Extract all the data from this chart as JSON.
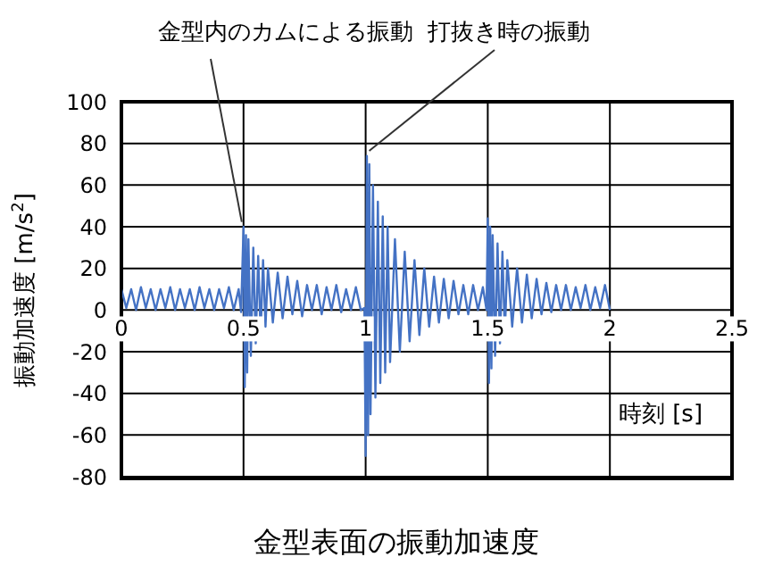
{
  "chart_data": {
    "type": "line",
    "title": "金型表面の振動加速度",
    "xlabel": "時刻 [s]",
    "ylabel": "振動加速度 [m/s$^{2}$]",
    "annotations": [
      {
        "text": "金型内のカムによる振動",
        "x": 0.5,
        "y": 40
      },
      {
        "text": "打抜き時の振動",
        "x": 1.0,
        "y": 74
      }
    ],
    "xlim": [
      0,
      2.5
    ],
    "xticks": [
      0,
      0.5,
      1,
      1.5,
      2,
      2.5
    ],
    "ylim": [
      -80,
      100
    ],
    "yticks": [
      -80,
      -60,
      -40,
      -20,
      0,
      20,
      40,
      60,
      80,
      100
    ],
    "grid": true,
    "legend": false,
    "marker": "none",
    "line_style": "solid",
    "series": [
      {
        "color": "#4472c4",
        "x": [
          0,
          0.02,
          0.04,
          0.06,
          0.08,
          0.1,
          0.12,
          0.14,
          0.16,
          0.18,
          0.2,
          0.22,
          0.24,
          0.26,
          0.28,
          0.3,
          0.32,
          0.34,
          0.36,
          0.38,
          0.4,
          0.42,
          0.44,
          0.46,
          0.48,
          0.49,
          0.5,
          0.505,
          0.51,
          0.515,
          0.52,
          0.53,
          0.54,
          0.55,
          0.56,
          0.57,
          0.58,
          0.59,
          0.6,
          0.62,
          0.64,
          0.66,
          0.68,
          0.7,
          0.72,
          0.74,
          0.76,
          0.78,
          0.8,
          0.82,
          0.84,
          0.86,
          0.88,
          0.9,
          0.92,
          0.94,
          0.96,
          0.98,
          0.995,
          1.0,
          1.005,
          1.01,
          1.015,
          1.02,
          1.03,
          1.04,
          1.05,
          1.06,
          1.07,
          1.08,
          1.09,
          1.1,
          1.12,
          1.14,
          1.16,
          1.18,
          1.2,
          1.22,
          1.24,
          1.26,
          1.28,
          1.3,
          1.32,
          1.34,
          1.36,
          1.38,
          1.4,
          1.42,
          1.44,
          1.46,
          1.48,
          1.495,
          1.5,
          1.505,
          1.51,
          1.515,
          1.52,
          1.53,
          1.54,
          1.55,
          1.56,
          1.57,
          1.58,
          1.6,
          1.62,
          1.64,
          1.66,
          1.68,
          1.7,
          1.72,
          1.74,
          1.76,
          1.78,
          1.8,
          1.82,
          1.84,
          1.86,
          1.88,
          1.9,
          1.92,
          1.94,
          1.96,
          1.98,
          2.0
        ],
        "values": [
          10,
          1,
          10,
          0,
          11,
          1,
          10,
          0,
          10,
          1,
          11,
          0,
          10,
          1,
          10,
          0,
          11,
          1,
          10,
          0,
          10,
          1,
          11,
          0,
          10,
          -1,
          40,
          -37,
          36,
          -30,
          34,
          -22,
          30,
          -16,
          26,
          -12,
          24,
          -8,
          20,
          -6,
          18,
          -4,
          16,
          -2,
          14,
          -3,
          12,
          0,
          12,
          -2,
          11,
          0,
          12,
          -1,
          10,
          0,
          11,
          0,
          1,
          -70,
          74,
          -60,
          70,
          -50,
          60,
          -42,
          52,
          -35,
          45,
          -30,
          40,
          -25,
          34,
          -20,
          28,
          -15,
          24,
          -12,
          20,
          -8,
          16,
          -6,
          15,
          -4,
          14,
          -2,
          12,
          -2,
          12,
          0,
          11,
          0,
          44,
          -35,
          40,
          -28,
          36,
          -22,
          32,
          -16,
          28,
          -12,
          24,
          -8,
          20,
          -6,
          17,
          -4,
          15,
          -2,
          13,
          -1,
          12,
          0,
          12,
          0,
          11,
          1,
          12,
          0,
          11,
          1,
          12,
          0
        ]
      }
    ]
  }
}
